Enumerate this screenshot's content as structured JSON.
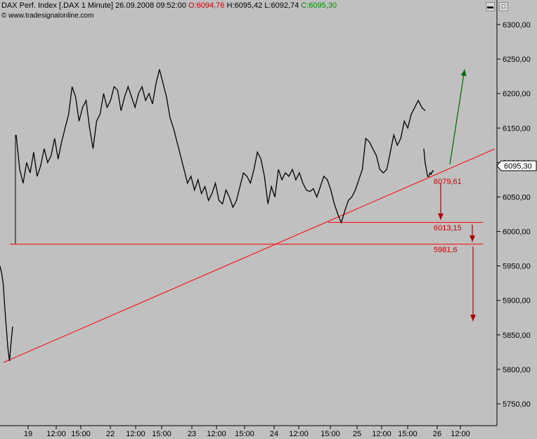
{
  "header": {
    "symbol": "DAX Perf. Index [.DAX  1 Minute]",
    "datetime": "26.09.2008 09:52:00",
    "open": "O:6094,76",
    "high": "H:6095,42",
    "low": "L:6092,74",
    "close": "C:6095,30",
    "source": "© www.tradesignalonline.com",
    "colors": {
      "open": "#cc0000",
      "close": "#008800",
      "text": "#000000"
    }
  },
  "window_buttons": {
    "minimize_icon": "minimize-icon",
    "maximize_icon": "maximize-icon"
  },
  "chart_data": {
    "type": "line",
    "title": "DAX Perf. Index [.DAX  1 Minute]",
    "ylim": [
      5720,
      6335
    ],
    "y_ticks": [
      "6300,00",
      "6250,00",
      "6200,00",
      "6150,00",
      "6100,00",
      "6050,00",
      "6000,00",
      "5950,00",
      "5900,00",
      "5850,00",
      "5800,00",
      "5750,00"
    ],
    "x_ticks": [
      "19",
      "12:00",
      "15:00",
      "22",
      "12:00",
      "15:00",
      "23",
      "12:00",
      "15:00",
      "24",
      "12:00",
      "15:00",
      "25",
      "12:00",
      "15:00",
      "26",
      "12:00"
    ],
    "current_price_label": "6095,30",
    "series": [
      {
        "values": [
          5950,
          5940,
          5925,
          5890,
          5860,
          5830,
          5812,
          5840,
          5862,
          6140,
          6090,
          6070,
          6100,
          6085,
          6115,
          6080,
          6095,
          6120,
          6100,
          6110,
          6135,
          6105,
          6130,
          6150,
          6170,
          6210,
          6195,
          6160,
          6180,
          6190,
          6150,
          6120,
          6160,
          6170,
          6200,
          6180,
          6190,
          6210,
          6205,
          6175,
          6195,
          6210,
          6195,
          6180,
          6200,
          6210,
          6190,
          6200,
          6185,
          6215,
          6235,
          6215,
          6195,
          6165,
          6150,
          6130,
          6110,
          6090,
          6070,
          6080,
          6060,
          6075,
          6055,
          6065,
          6045,
          6055,
          6070,
          6045,
          6040,
          6060,
          6050,
          6035,
          6045,
          6065,
          6085,
          6080,
          6070,
          6090,
          6115,
          6105,
          6080,
          6040,
          6065,
          6050,
          6090,
          6075,
          6085,
          6080,
          6090,
          6075,
          6085,
          6070,
          6060,
          6058,
          6062,
          6050,
          6065,
          6080,
          6075,
          6060,
          6040,
          6025,
          6013,
          6030,
          6045,
          6050,
          6060,
          6075,
          6090,
          6135,
          6130,
          6120,
          6110,
          6090,
          6085,
          6090,
          6115,
          6140,
          6125,
          6135,
          6160,
          6150,
          6170,
          6180,
          6190,
          6180,
          6175
        ]
      },
      {
        "values": [
          6120,
          6100,
          6090,
          6080,
          6079.61,
          6085,
          6083,
          6088,
          6087
        ]
      }
    ],
    "support_lines": [
      {
        "label": "6013,15",
        "value": 6013.15
      },
      {
        "label": "5981,6",
        "value": 5981.6
      }
    ],
    "trendline_label": "6079,61",
    "trendline_value": 6079.61,
    "trendline": {
      "from": {
        "date": "19",
        "value": 5810
      },
      "to": {
        "date": "26",
        "value": 6079.61
      }
    },
    "arrows": [
      {
        "type": "target-up",
        "color": "#006600",
        "target": 6235
      },
      {
        "type": "target-down",
        "color": "#aa0000",
        "from": 6070,
        "target": 6017
      },
      {
        "type": "target-down",
        "color": "#aa0000",
        "from": 6010,
        "target": 5985
      },
      {
        "type": "target-down",
        "color": "#aa0000",
        "from": 5978,
        "target": 5870
      }
    ],
    "colors": {
      "price": "#000000",
      "lines": "#ff0000",
      "arrow_down": "#aa0000",
      "arrow_up": "#006600",
      "label_bg": "#ffffff"
    }
  }
}
